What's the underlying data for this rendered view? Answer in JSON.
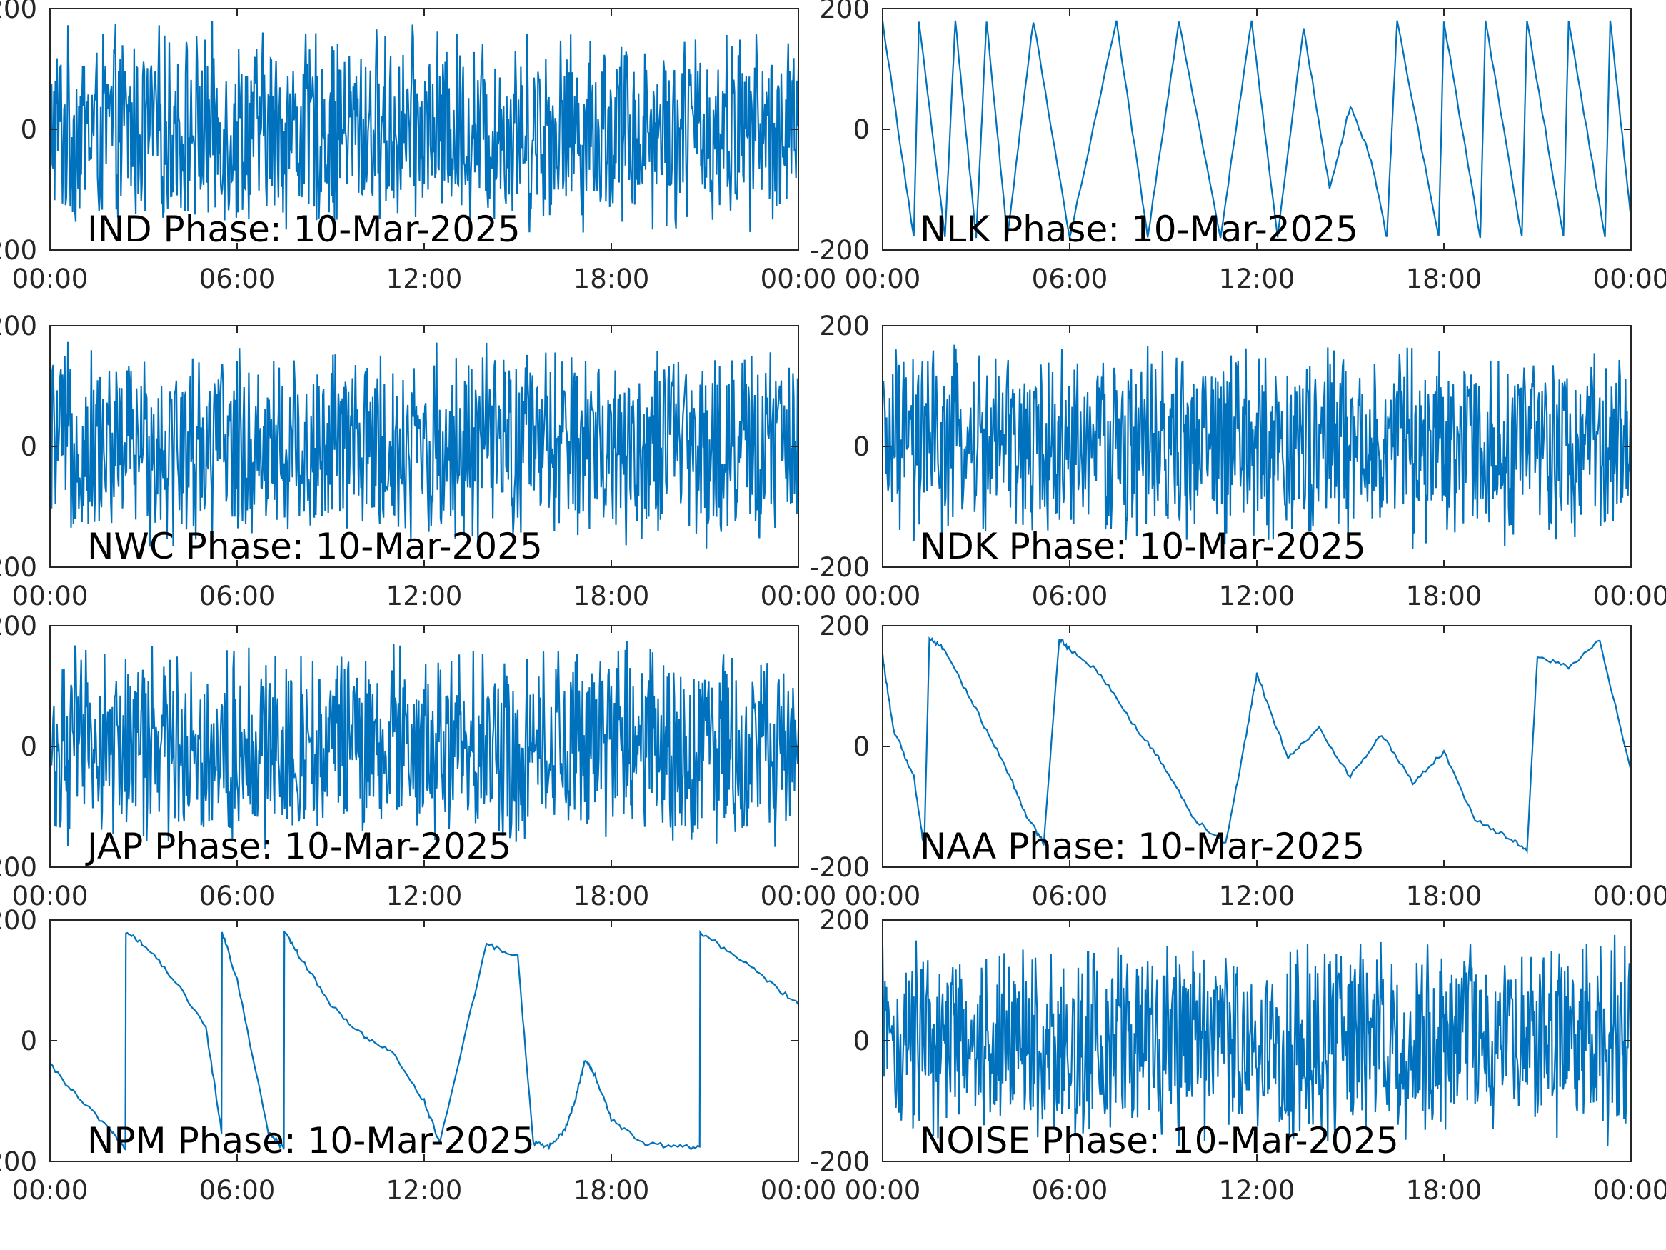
{
  "figure": {
    "line_color": "#0072BD",
    "axis_color": "#262626",
    "background": "#FFFFFF"
  },
  "chart_data": [
    {
      "type": "line",
      "title": "IND Phase: 10-Mar-2025",
      "xlabel": "",
      "ylabel": "",
      "x_ticks": [
        "00:00",
        "06:00",
        "12:00",
        "18:00",
        "00:00"
      ],
      "y_ticks": [
        "-200",
        "0",
        "200"
      ],
      "xlim": [
        "00:00",
        "24:00"
      ],
      "ylim": [
        -200,
        200
      ],
      "grid": false,
      "series": [
        {
          "x": [
            "00:00",
            "01:00",
            "02:00",
            "03:00",
            "04:00",
            "05:00",
            "06:00",
            "07:00",
            "08:00",
            "09:00",
            "10:00",
            "11:00",
            "12:00",
            "13:00",
            "14:00",
            "15:00",
            "16:00",
            "17:00",
            "18:00",
            "19:00",
            "20:00",
            "21:00",
            "22:00",
            "23:00",
            "24:00"
          ],
          "y": [
            120,
            -150,
            60,
            -170,
            140,
            -90,
            30,
            -160,
            170,
            -120,
            80,
            -175,
            160,
            -170,
            175,
            -175,
            170,
            -170,
            175,
            -175,
            170,
            -175,
            175,
            -170,
            100
          ],
          "behavior": "dense wrapping noise, very dense 09:00-10:30 and 14:00-24:00"
        }
      ]
    },
    {
      "type": "line",
      "title": "NLK Phase: 10-Mar-2025",
      "xlabel": "",
      "ylabel": "",
      "x_ticks": [
        "00:00",
        "06:00",
        "12:00",
        "18:00",
        "00:00"
      ],
      "y_ticks": [
        "-200",
        "0",
        "200"
      ],
      "xlim": [
        "00:00",
        "24:00"
      ],
      "ylim": [
        -200,
        200
      ],
      "grid": false,
      "series": [
        {
          "x": [
            "00:00",
            "01:00",
            "01:10",
            "02:00",
            "02:20",
            "03:00",
            "03:20",
            "04:00",
            "04:50",
            "06:00",
            "07:30",
            "08:30",
            "09:30",
            "10:50",
            "11:50",
            "12:40",
            "13:30",
            "14:20",
            "15:00",
            "15:40",
            "16:10",
            "16:30",
            "17:50",
            "18:00",
            "19:10",
            "19:20",
            "20:30",
            "20:40",
            "21:50",
            "22:00",
            "23:10",
            "23:20",
            "24:00"
          ],
          "y": [
            180,
            -180,
            180,
            -180,
            180,
            -180,
            180,
            -180,
            180,
            -180,
            180,
            -180,
            180,
            -180,
            180,
            -180,
            170,
            -100,
            40,
            -50,
            -180,
            180,
            -180,
            180,
            -180,
            180,
            -180,
            180,
            -180,
            180,
            -180,
            180,
            -150
          ],
          "behavior": "sawtooth phase drift with wraps at +/-180"
        }
      ]
    },
    {
      "type": "line",
      "title": "NWC Phase: 10-Mar-2025",
      "xlabel": "",
      "ylabel": "",
      "x_ticks": [
        "00:00",
        "06:00",
        "12:00",
        "18:00",
        "00:00"
      ],
      "y_ticks": [
        "-200",
        "0",
        "200"
      ],
      "xlim": [
        "00:00",
        "24:00"
      ],
      "ylim": [
        -200,
        200
      ],
      "grid": false,
      "series": [
        {
          "x": [
            "00:00",
            "01:00",
            "02:00",
            "03:00",
            "04:00",
            "05:00",
            "06:00",
            "07:00",
            "08:00",
            "09:00",
            "10:00",
            "11:00",
            "12:00",
            "13:00",
            "14:00",
            "15:00",
            "16:00",
            "17:00",
            "18:00",
            "19:00",
            "20:00",
            "21:00",
            "22:00",
            "23:00",
            "24:00"
          ],
          "y": [
            20,
            -150,
            140,
            -60,
            90,
            -170,
            160,
            -30,
            120,
            -175,
            40,
            -120,
            170,
            -90,
            60,
            -170,
            150,
            -50,
            110,
            -175,
            80,
            -140,
            170,
            -60,
            20
          ],
          "behavior": "dense wrapping noise"
        }
      ]
    },
    {
      "type": "line",
      "title": "NDK Phase: 10-Mar-2025",
      "xlabel": "",
      "ylabel": "",
      "x_ticks": [
        "00:00",
        "06:00",
        "12:00",
        "18:00",
        "00:00"
      ],
      "y_ticks": [
        "-200",
        "0",
        "200"
      ],
      "xlim": [
        "00:00",
        "24:00"
      ],
      "ylim": [
        -200,
        200
      ],
      "grid": false,
      "series": [
        {
          "x": [
            "00:00",
            "01:00",
            "02:00",
            "03:00",
            "04:00",
            "05:00",
            "06:00",
            "07:00",
            "08:00",
            "09:00",
            "10:00",
            "11:00",
            "12:00",
            "13:00",
            "14:00",
            "15:00",
            "16:00",
            "17:00",
            "18:00",
            "19:00",
            "20:00",
            "21:00",
            "22:00",
            "23:00",
            "24:00"
          ],
          "y": [
            -40,
            140,
            -160,
            60,
            -110,
            170,
            -70,
            90,
            -170,
            130,
            -20,
            160,
            -140,
            40,
            -100,
            175,
            -160,
            70,
            -120,
            150,
            -60,
            100,
            30,
            -130,
            80
          ],
          "behavior": "dense wrapping noise"
        }
      ]
    },
    {
      "type": "line",
      "title": "JAP Phase: 10-Mar-2025",
      "xlabel": "",
      "ylabel": "",
      "x_ticks": [
        "00:00",
        "06:00",
        "12:00",
        "18:00",
        "00:00"
      ],
      "y_ticks": [
        "-200",
        "0",
        "200"
      ],
      "xlim": [
        "00:00",
        "24:00"
      ],
      "ylim": [
        -200,
        200
      ],
      "grid": false,
      "series": [
        {
          "x": [
            "00:00",
            "01:00",
            "02:00",
            "03:00",
            "04:00",
            "05:00",
            "06:00",
            "07:00",
            "08:00",
            "09:00",
            "10:00",
            "11:00",
            "12:00",
            "13:00",
            "14:00",
            "15:00",
            "16:00",
            "17:00",
            "18:00",
            "19:00",
            "20:00",
            "21:00",
            "22:00",
            "23:00",
            "24:00"
          ],
          "y": [
            -120,
            160,
            -30,
            140,
            -175,
            90,
            -150,
            170,
            -60,
            130,
            -170,
            40,
            150,
            -140,
            80,
            -175,
            160,
            -20,
            120,
            -170,
            60,
            -130,
            170,
            -90,
            30
          ],
          "behavior": "dense wrapping noise"
        }
      ]
    },
    {
      "type": "line",
      "title": "NAA Phase: 10-Mar-2025",
      "xlabel": "",
      "ylabel": "",
      "x_ticks": [
        "00:00",
        "06:00",
        "12:00",
        "18:00",
        "00:00"
      ],
      "y_ticks": [
        "-200",
        "0",
        "200"
      ],
      "xlim": [
        "00:00",
        "24:00"
      ],
      "ylim": [
        -200,
        200
      ],
      "grid": false,
      "series": [
        {
          "x": [
            "00:00",
            "00:20",
            "01:00",
            "01:20",
            "01:30",
            "02:00",
            "03:00",
            "04:00",
            "04:40",
            "05:10",
            "05:40",
            "06:00",
            "07:00",
            "08:00",
            "09:00",
            "10:00",
            "11:00",
            "11:40",
            "12:00",
            "13:00",
            "14:00",
            "15:00",
            "16:00",
            "17:00",
            "18:00",
            "19:00",
            "20:00",
            "20:40",
            "21:00",
            "22:00",
            "23:00",
            "24:00"
          ],
          "y": [
            150,
            30,
            -50,
            -170,
            180,
            160,
            60,
            -40,
            -120,
            -160,
            180,
            160,
            120,
            40,
            -30,
            -120,
            -160,
            20,
            120,
            -20,
            30,
            -50,
            20,
            -60,
            -10,
            -120,
            -150,
            -170,
            150,
            130,
            175,
            -40
          ],
          "behavior": "slow drifts with dense wrapping bands near 05:00, 11:00 and 20:00-24:00"
        }
      ]
    },
    {
      "type": "line",
      "title": "NPM Phase: 10-Mar-2025",
      "xlabel": "",
      "ylabel": "",
      "x_ticks": [
        "00:00",
        "06:00",
        "12:00",
        "18:00",
        "00:00"
      ],
      "y_ticks": [
        "-200",
        "0",
        "200"
      ],
      "xlim": [
        "00:00",
        "24:00"
      ],
      "ylim": [
        -200,
        200
      ],
      "grid": false,
      "series": [
        {
          "x": [
            "00:00",
            "01:00",
            "02:00",
            "02:25",
            "02:26",
            "03:00",
            "04:00",
            "05:00",
            "05:30",
            "05:31",
            "06:00",
            "07:00",
            "07:30",
            "07:31",
            "08:00",
            "09:00",
            "10:00",
            "11:00",
            "12:00",
            "12:30",
            "14:00",
            "15:00",
            "15:30",
            "16:00",
            "16:30",
            "16:50",
            "17:10",
            "17:30",
            "18:00",
            "19:00",
            "20:00",
            "20:50",
            "20:51",
            "22:00",
            "23:00",
            "24:00"
          ],
          "y": [
            -40,
            -100,
            -150,
            -180,
            180,
            160,
            100,
            20,
            -150,
            180,
            100,
            -150,
            -180,
            180,
            140,
            60,
            10,
            -20,
            -100,
            -170,
            160,
            140,
            -170,
            -175,
            -150,
            -100,
            -30,
            -60,
            -130,
            -170,
            -175,
            -178,
            180,
            140,
            100,
            60
          ],
          "behavior": "sawtooth drifts with wrapping band 12:15-16:30"
        }
      ]
    },
    {
      "type": "line",
      "title": "NOISE Phase: 10-Mar-2025",
      "xlabel": "",
      "ylabel": "",
      "x_ticks": [
        "00:00",
        "06:00",
        "12:00",
        "18:00",
        "00:00"
      ],
      "y_ticks": [
        "-200",
        "0",
        "200"
      ],
      "xlim": [
        "00:00",
        "24:00"
      ],
      "ylim": [
        -200,
        200
      ],
      "grid": false,
      "series": [
        {
          "x": [
            "00:00",
            "01:00",
            "02:00",
            "03:00",
            "04:00",
            "05:00",
            "06:00",
            "07:00",
            "08:00",
            "09:00",
            "10:00",
            "11:00",
            "12:00",
            "13:00",
            "14:00",
            "15:00",
            "16:00",
            "17:00",
            "18:00",
            "19:00",
            "20:00",
            "21:00",
            "22:00",
            "23:00",
            "24:00"
          ],
          "y": [
            -80,
            30,
            -40,
            150,
            -160,
            90,
            -120,
            170,
            -50,
            130,
            -175,
            60,
            150,
            -140,
            100,
            -175,
            170,
            -20,
            120,
            -170,
            80,
            -130,
            170,
            -90,
            -100
          ],
          "behavior": "dense wrapping noise"
        }
      ]
    }
  ]
}
